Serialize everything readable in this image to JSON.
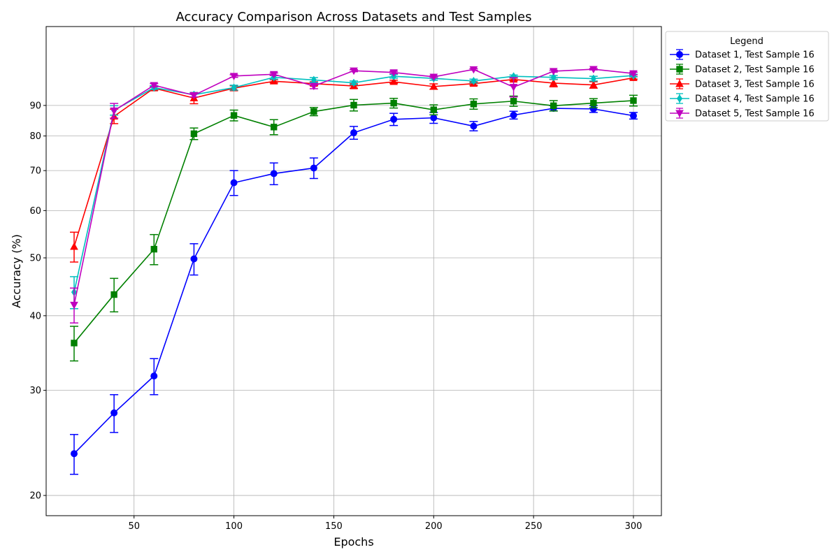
{
  "chart_data": {
    "type": "line",
    "title": "Accuracy Comparison Across Datasets and Test Samples",
    "xlabel": "Epochs",
    "ylabel": "Accuracy (%)",
    "xlim": [
      6,
      314
    ],
    "y_scale": "log",
    "ylim": [
      18.5,
      122
    ],
    "x_ticks": [
      50,
      100,
      150,
      200,
      250,
      300
    ],
    "y_ticks": [
      20,
      30,
      40,
      50,
      60,
      70,
      80,
      90
    ],
    "grid": true,
    "legend": {
      "title": "Legend",
      "placement": "outside-top-right"
    },
    "x": [
      20,
      40,
      60,
      80,
      100,
      120,
      140,
      160,
      180,
      200,
      220,
      240,
      260,
      280,
      300
    ],
    "series": [
      {
        "name": "Dataset 1, Test Sample 16",
        "color": "#0000ff",
        "marker": "circle",
        "values": [
          23.5,
          27.5,
          31.7,
          49.8,
          66.8,
          69.2,
          70.7,
          81.0,
          85.3,
          85.8,
          83.1,
          86.7,
          89.0,
          88.8,
          86.5
        ],
        "errors": [
          1.8,
          2.0,
          2.2,
          3.0,
          3.2,
          2.9,
          2.8,
          2.0,
          2.0,
          1.8,
          1.5,
          1.3,
          0.9,
          1.2,
          1.1
        ]
      },
      {
        "name": "Dataset 2, Test Sample 16",
        "color": "#008000",
        "marker": "square",
        "values": [
          36.0,
          43.4,
          51.7,
          80.7,
          86.6,
          82.8,
          87.9,
          90.1,
          90.8,
          88.5,
          90.5,
          91.5,
          89.9,
          90.8,
          91.7
        ],
        "errors": [
          2.4,
          2.8,
          3.0,
          1.8,
          1.8,
          2.4,
          1.4,
          2.0,
          1.7,
          1.7,
          1.8,
          1.8,
          1.8,
          1.6,
          1.9
        ]
      },
      {
        "name": "Dataset 3, Test Sample 16",
        "color": "#ff0000",
        "marker": "triangle-up",
        "values": [
          52.2,
          86.3,
          96.2,
          92.6,
          96.2,
          98.8,
          97.9,
          97.0,
          98.6,
          96.8,
          97.9,
          99.5,
          98.1,
          97.4,
          100.1
        ],
        "errors": [
          3.0,
          2.4,
          0.8,
          2.0,
          0.9,
          0.6,
          0.7,
          0.8,
          0.6,
          1.0,
          0.6,
          0.5,
          1.4,
          1.2,
          0.5
        ]
      },
      {
        "name": "Dataset 4, Test Sample 16",
        "color": "#00bfbf",
        "marker": "diamond",
        "values": [
          43.8,
          88.3,
          96.4,
          93.8,
          96.4,
          100.3,
          99.3,
          98.2,
          100.7,
          99.9,
          98.9,
          100.7,
          100.3,
          99.8,
          101.0
        ],
        "errors": [
          2.7,
          1.6,
          0.7,
          0.8,
          0.9,
          0.7,
          0.9,
          0.7,
          0.7,
          0.7,
          0.7,
          0.5,
          0.7,
          0.9,
          0.5
        ]
      },
      {
        "name": "Dataset 5, Test Sample 16",
        "color": "#bf00bf",
        "marker": "triangle-down",
        "values": [
          41.7,
          88.2,
          97.3,
          93.6,
          100.8,
          101.5,
          97.0,
          102.9,
          102.2,
          100.5,
          103.4,
          96.6,
          102.7,
          103.5,
          101.8
        ],
        "errors": [
          2.8,
          2.5,
          0.6,
          0.6,
          0.5,
          0.5,
          1.0,
          0.4,
          0.5,
          0.4,
          0.3,
          3.6,
          0.4,
          0.3,
          0.5
        ]
      }
    ]
  }
}
